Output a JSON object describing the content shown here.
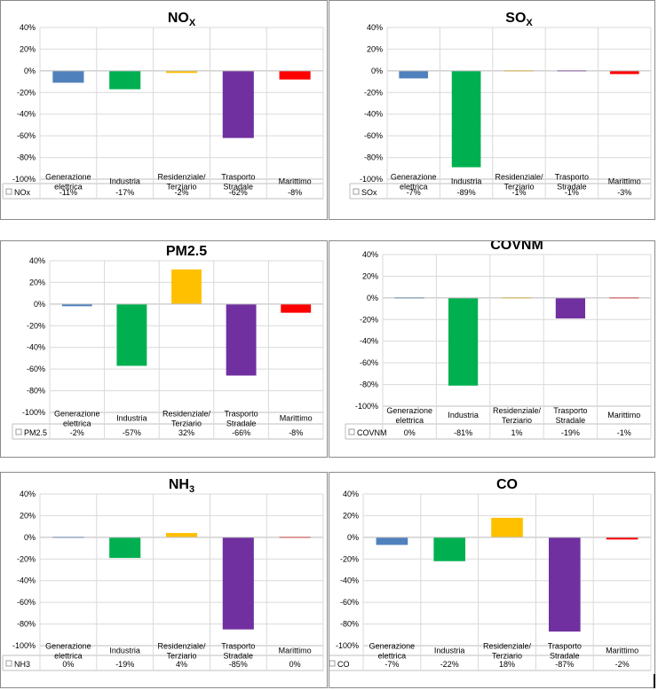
{
  "categories": [
    [
      "Generazione",
      "elettrica"
    ],
    [
      "Industria"
    ],
    [
      "Residenziale/",
      "Terziario"
    ],
    [
      "Trasporto",
      "Stradale"
    ],
    [
      "Marittimo"
    ]
  ],
  "bar_colors": [
    "#4f81bd",
    "#00b050",
    "#ffc000",
    "#7030a0",
    "#ff0000"
  ],
  "chart_data": [
    {
      "type": "bar",
      "title": "NOX",
      "title_base": "NO",
      "title_sub": "X",
      "legend_label": "NOx",
      "values": [
        -11,
        -17,
        -2,
        -62,
        -8
      ],
      "value_labels": [
        "-11%",
        "-17%",
        "-2%",
        "-62%",
        "-8%"
      ],
      "ylim": [
        -100,
        40
      ],
      "yticks": [
        "40%",
        "20%",
        "0%",
        "-20%",
        "-40%",
        "-60%",
        "-80%",
        "-100%"
      ]
    },
    {
      "type": "bar",
      "title": "SOX",
      "title_base": "SO",
      "title_sub": "X",
      "legend_label": "SOx",
      "values": [
        -7,
        -89,
        -1,
        -1,
        -3
      ],
      "value_labels": [
        "-7%",
        "-89%",
        "-1%",
        "-1%",
        "-3%"
      ],
      "ylim": [
        -100,
        40
      ],
      "yticks": [
        "40%",
        "20%",
        "0%",
        "-20%",
        "-40%",
        "-60%",
        "-80%",
        "-100%"
      ]
    },
    {
      "type": "bar",
      "title": "PM2.5",
      "title_base": "PM2.5",
      "title_sub": "",
      "legend_label": "PM2.5",
      "values": [
        -2,
        -57,
        32,
        -66,
        -8
      ],
      "value_labels": [
        "-2%",
        "-57%",
        "32%",
        "-66%",
        "-8%"
      ],
      "ylim": [
        -100,
        40
      ],
      "yticks": [
        "40%",
        "20%",
        "0%",
        "-20%",
        "-40%",
        "-60%",
        "-80%",
        "-100%"
      ]
    },
    {
      "type": "bar",
      "title": "COVNM",
      "title_base": "COVNM",
      "title_sub": "",
      "legend_label": "COVNM",
      "values": [
        0,
        -81,
        1,
        -19,
        -1
      ],
      "value_labels": [
        "0%",
        "-81%",
        "1%",
        "-19%",
        "-1%"
      ],
      "ylim": [
        -100,
        40
      ],
      "yticks": [
        "40%",
        "20%",
        "0%",
        "-20%",
        "-40%",
        "-60%",
        "-80%",
        "-100%"
      ]
    },
    {
      "type": "bar",
      "title": "NH3",
      "title_base": "NH",
      "title_sub": "3",
      "legend_label": "NH3",
      "values": [
        0,
        -19,
        4,
        -85,
        0
      ],
      "value_labels": [
        "0%",
        "-19%",
        "4%",
        "-85%",
        "0%"
      ],
      "ylim": [
        -100,
        40
      ],
      "yticks": [
        "40%",
        "20%",
        "0%",
        "-20%",
        "-40%",
        "-60%",
        "-80%",
        "-100%"
      ]
    },
    {
      "type": "bar",
      "title": "CO",
      "title_base": "CO",
      "title_sub": "",
      "legend_label": "CO",
      "values": [
        -7,
        -22,
        18,
        -87,
        -2
      ],
      "value_labels": [
        "-7%",
        "-22%",
        "18%",
        "-87%",
        "-2%"
      ],
      "ylim": [
        -100,
        40
      ],
      "yticks": [
        "40%",
        "20%",
        "0%",
        "-20%",
        "-40%",
        "-60%",
        "-80%",
        "-100%"
      ]
    }
  ]
}
